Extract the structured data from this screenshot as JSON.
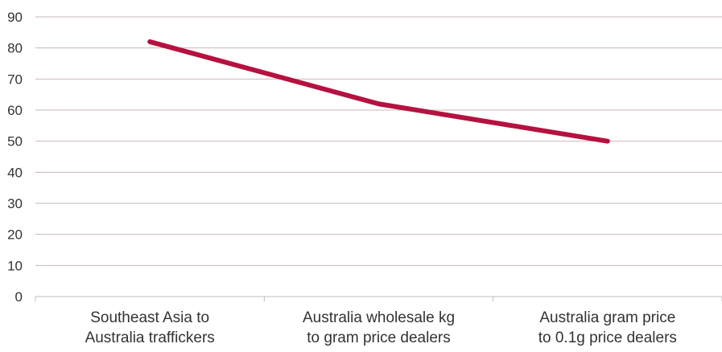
{
  "chart_data": {
    "type": "line",
    "categories": [
      [
        "Southeast Asia to",
        "Australia traffickers"
      ],
      [
        "Australia wholesale kg",
        "to gram price dealers"
      ],
      [
        "Australia gram price",
        "to 0.1g price dealers"
      ]
    ],
    "series": [
      {
        "values": [
          82,
          62,
          50
        ],
        "color": "#b5123f"
      }
    ],
    "ylim": [
      0,
      90
    ],
    "yticks": [
      "0",
      "10",
      "20",
      "30",
      "40",
      "50",
      "60",
      "70",
      "80",
      "90"
    ],
    "grid": true,
    "legend": "none"
  }
}
